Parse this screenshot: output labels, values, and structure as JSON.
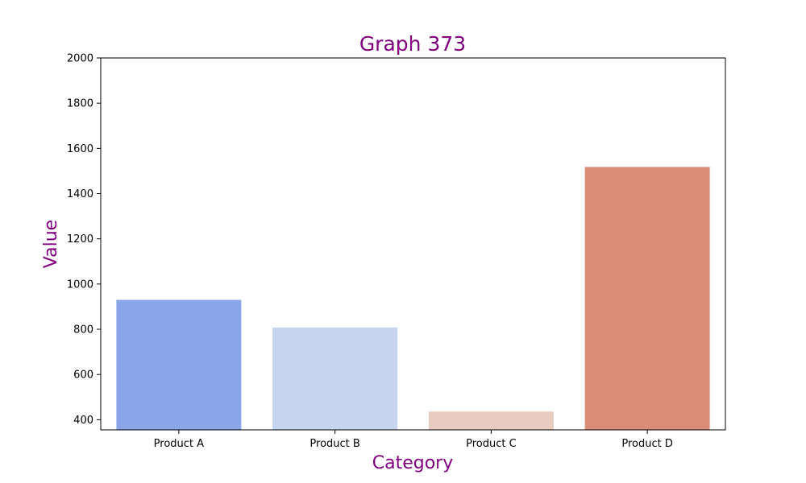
{
  "chart_data": {
    "type": "bar",
    "title": "Graph 373",
    "xlabel": "Category",
    "ylabel": "Value",
    "categories": [
      "Product A",
      "Product B",
      "Product C",
      "Product D"
    ],
    "values": [
      930,
      808,
      436,
      1518
    ],
    "colors": [
      "#8aa6e8",
      "#c6d4ef",
      "#e8ccbf",
      "#da8e77"
    ],
    "ylim": [
      355,
      2000
    ],
    "yticks": [
      400,
      600,
      800,
      1000,
      1200,
      1400,
      1600,
      1800,
      2000
    ],
    "grid": false,
    "legend": "none",
    "text_color": "#800080"
  }
}
